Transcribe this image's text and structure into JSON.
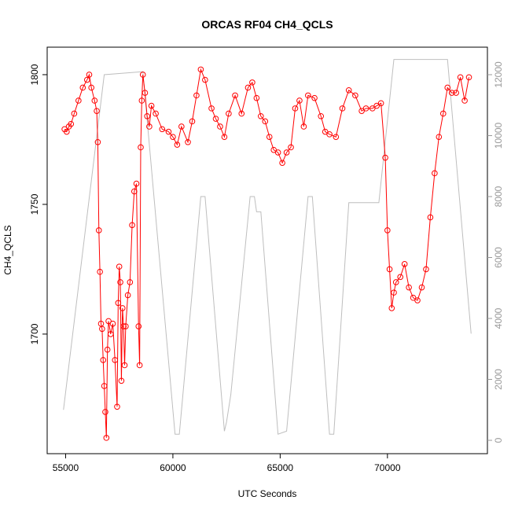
{
  "chart_data": {
    "type": "line",
    "title": "ORCAS RF04 CH4_QCLS",
    "x_label": "UTC Seconds",
    "y_label": "CH4_QCLS",
    "xlim": [
      54140,
      74660
    ],
    "xticks": [
      55000,
      60000,
      65000,
      70000
    ],
    "ylim": [
      1653.9,
      1810.6
    ],
    "yticks": [
      1700,
      1750,
      1800
    ],
    "y2lim": [
      -439,
      12903
    ],
    "y2ticks": [
      0,
      2000,
      4000,
      6000,
      8000,
      10000,
      12000
    ],
    "series": [
      {
        "color": "#ff0000",
        "markers": true,
        "x": [
          54950,
          55050,
          55150,
          55250,
          55400,
          55600,
          55800,
          56000,
          56100,
          56200,
          56350,
          56450,
          56500,
          56550,
          56600,
          56650,
          56700,
          56750,
          56800,
          56850,
          56900,
          56950,
          57000,
          57100,
          57200,
          57300,
          57400,
          57450,
          57500,
          57550,
          57600,
          57650,
          57700,
          57750,
          57800,
          57900,
          58000,
          58100,
          58200,
          58300,
          58400,
          58450,
          58500,
          58550,
          58600,
          58700,
          58800,
          58900,
          59000,
          59200,
          59500,
          59800,
          60000,
          60200,
          60400,
          60700,
          60900,
          61100,
          61300,
          61500,
          61800,
          62000,
          62200,
          62400,
          62600,
          62900,
          63200,
          63500,
          63700,
          63900,
          64100,
          64300,
          64500,
          64700,
          64900,
          65100,
          65300,
          65500,
          65700,
          65900,
          66100,
          66300,
          66600,
          66900,
          67100,
          67300,
          67600,
          67900,
          68200,
          68500,
          68800,
          69000,
          69300,
          69500,
          69700,
          69900,
          70000,
          70100,
          70200,
          70300,
          70400,
          70600,
          70800,
          71000,
          71200,
          71400,
          71600,
          71800,
          72000,
          72200,
          72400,
          72600,
          72800,
          73000,
          73200,
          73400,
          73600,
          73800
        ],
        "values": [
          1779,
          1778,
          1780,
          1781,
          1785,
          1790,
          1795,
          1798,
          1800,
          1795,
          1790,
          1786,
          1774,
          1740,
          1724,
          1704,
          1702,
          1690,
          1680,
          1670,
          1660,
          1694,
          1705,
          1700,
          1704,
          1690,
          1672,
          1712,
          1726,
          1720,
          1682,
          1710,
          1703,
          1688,
          1703,
          1715,
          1720,
          1742,
          1755,
          1758,
          1703,
          1688,
          1772,
          1790,
          1800,
          1793,
          1784,
          1780,
          1788,
          1785,
          1779,
          1778,
          1776,
          1773,
          1780,
          1774,
          1782,
          1792,
          1802,
          1798,
          1787,
          1783,
          1780,
          1776,
          1785,
          1792,
          1785,
          1795,
          1797,
          1791,
          1784,
          1782,
          1776,
          1771,
          1770,
          1766,
          1770,
          1772,
          1787,
          1790,
          1780,
          1792,
          1791,
          1784,
          1778,
          1777,
          1776,
          1787,
          1794,
          1792,
          1786,
          1787,
          1787,
          1788,
          1789,
          1768,
          1740,
          1725,
          1710,
          1716,
          1720,
          1722,
          1727,
          1718,
          1714,
          1713,
          1718,
          1725,
          1745,
          1762,
          1776,
          1785,
          1795,
          1793,
          1793,
          1799,
          1790,
          1799
        ]
      },
      {
        "color": "#bebebe",
        "axis": "y2",
        "markers": false,
        "x": [
          54900,
          56800,
          58600,
          60100,
          60300,
          61300,
          61500,
          62400,
          62500,
          62700,
          63600,
          63800,
          63900,
          64100,
          64900,
          65300,
          66300,
          66500,
          67300,
          67500,
          68200,
          69600,
          70300,
          72800,
          73900
        ],
        "values": [
          1000,
          12000,
          12100,
          200,
          200,
          8000,
          8000,
          300,
          600,
          1500,
          8000,
          8000,
          7500,
          7500,
          200,
          300,
          8000,
          8000,
          200,
          200,
          7800,
          7800,
          12500,
          12500,
          3500
        ]
      }
    ]
  }
}
